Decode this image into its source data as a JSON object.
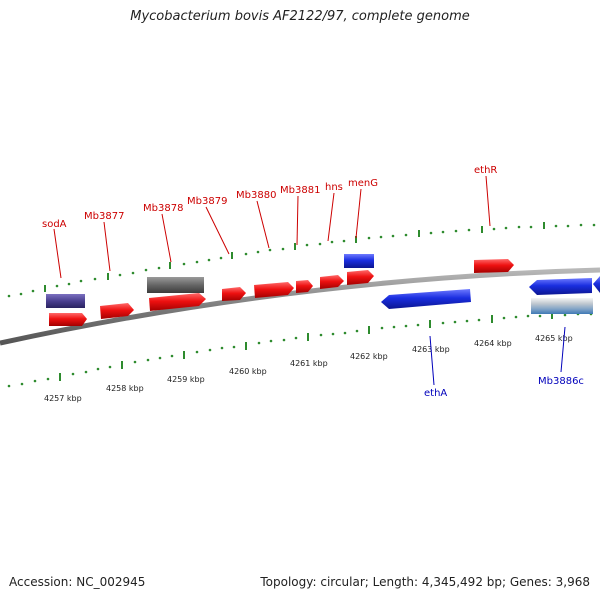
{
  "title": "Mycobacterium bovis AF2122/97, complete genome",
  "accession": "Accession: NC_002945",
  "summary": "Topology: circular; Length: 4,345,492 bp; Genes: 3,968",
  "colors": {
    "forward_gene": "#ee1111",
    "reverse_gene": "#1a2ee0",
    "gray_feature": "#666666",
    "purple_feature": "#4a3f8f",
    "rrna_feature": "#9fb6c8",
    "forward_label": "#cc0000",
    "reverse_label": "#0000bb",
    "ticks": "#2e8b2e",
    "backbone": "#888888"
  },
  "scale_labels": [
    "4257 kbp",
    "4258 kbp",
    "4259 kbp",
    "4260 kbp",
    "4261 kbp",
    "4262 kbp",
    "4263 kbp",
    "4264 kbp",
    "4265 kbp"
  ],
  "forward_gene_labels": [
    "sodA",
    "Mb3877",
    "Mb3878",
    "Mb3879",
    "Mb3880",
    "Mb3881",
    "hns",
    "menG",
    "ethR"
  ],
  "reverse_gene_labels": [
    "ethA",
    "Mb3886c"
  ]
}
